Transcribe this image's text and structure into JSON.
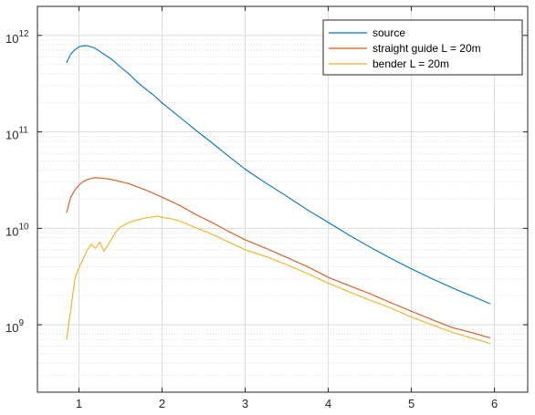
{
  "chart_data": {
    "type": "line",
    "yscale": "log",
    "xlim": [
      0.5,
      6.4
    ],
    "ylim": [
      200000000,
      2000000000000
    ],
    "xticks": [
      1,
      2,
      3,
      4,
      5,
      6
    ],
    "xtick_labels": [
      "1",
      "2",
      "3",
      "4",
      "5",
      "6"
    ],
    "yticks": [
      {
        "value": 1000000000000,
        "base": "10",
        "exp": "12"
      },
      {
        "value": 100000000000,
        "base": "10",
        "exp": "11"
      },
      {
        "value": 10000000000,
        "base": "10",
        "exp": "10"
      },
      {
        "value": 1000000000,
        "base": "10",
        "exp": "9"
      }
    ],
    "grid": true,
    "minor_grid": true,
    "legend_position": "top-right",
    "series": [
      {
        "name": "source",
        "color": "#0072BD",
        "x": [
          0.85,
          0.9,
          0.95,
          1.0,
          1.05,
          1.1,
          1.15,
          1.2,
          1.3,
          1.4,
          1.5,
          1.6,
          1.7,
          1.8,
          1.9,
          2.0,
          2.2,
          2.4,
          2.6,
          2.8,
          3.0,
          3.25,
          3.5,
          3.75,
          4.0,
          4.25,
          4.5,
          4.75,
          5.0,
          5.25,
          5.5,
          5.75,
          5.95
        ],
        "y": [
          520000000000,
          640000000000,
          710000000000,
          760000000000,
          780000000000,
          780000000000,
          760000000000,
          730000000000,
          640000000000,
          560000000000,
          470000000000,
          400000000000,
          330000000000,
          280000000000,
          240000000000,
          200000000000,
          145000000000,
          105000000000,
          77000000000,
          56000000000,
          41000000000,
          29500000000,
          21500000000,
          15500000000,
          11500000000,
          8500000000,
          6400000000,
          4900000000,
          3800000000,
          3000000000,
          2400000000,
          1950000000,
          1650000000
        ]
      },
      {
        "name": "straight guide L = 20m",
        "color": "#D95319",
        "x": [
          0.85,
          0.9,
          0.95,
          1.0,
          1.05,
          1.1,
          1.15,
          1.2,
          1.3,
          1.4,
          1.5,
          1.6,
          1.7,
          1.8,
          1.9,
          2.0,
          2.2,
          2.4,
          2.6,
          2.8,
          3.0,
          3.25,
          3.5,
          3.75,
          4.0,
          4.25,
          4.5,
          4.75,
          5.0,
          5.25,
          5.5,
          5.75,
          5.95
        ],
        "y": [
          14500000000,
          21000000000,
          25000000000,
          28000000000,
          30500000000,
          32000000000,
          33000000000,
          33500000000,
          33000000000,
          32000000000,
          30500000000,
          29000000000,
          27000000000,
          25000000000,
          23000000000,
          21000000000,
          17500000000,
          14000000000,
          11500000000,
          9300000000,
          7600000000,
          6200000000,
          5000000000,
          4000000000,
          3100000000,
          2550000000,
          2100000000,
          1700000000,
          1380000000,
          1130000000,
          930000000,
          820000000,
          730000000
        ]
      },
      {
        "name": "bender L = 20m",
        "color": "#EDB120",
        "x": [
          0.85,
          0.9,
          0.95,
          1.0,
          1.05,
          1.1,
          1.15,
          1.2,
          1.25,
          1.3,
          1.35,
          1.4,
          1.45,
          1.5,
          1.6,
          1.7,
          1.8,
          1.9,
          1.95,
          2.0,
          2.1,
          2.2,
          2.4,
          2.6,
          2.8,
          3.0,
          3.25,
          3.5,
          3.75,
          4.0,
          4.25,
          4.5,
          4.75,
          5.0,
          5.25,
          5.5,
          5.75,
          5.95
        ],
        "y": [
          700000000,
          1400000000,
          3000000000,
          3900000000,
          4800000000,
          6000000000,
          6800000000,
          6200000000,
          7200000000,
          5800000000,
          6700000000,
          8000000000,
          9300000000,
          10300000000,
          11500000000,
          12200000000,
          12800000000,
          13200000000,
          13400000000,
          13000000000,
          12600000000,
          12000000000,
          10200000000,
          8700000000,
          7200000000,
          6000000000,
          5100000000,
          4200000000,
          3400000000,
          2700000000,
          2200000000,
          1800000000,
          1500000000,
          1200000000,
          1000000000,
          830000000,
          720000000,
          640000000
        ]
      }
    ]
  }
}
